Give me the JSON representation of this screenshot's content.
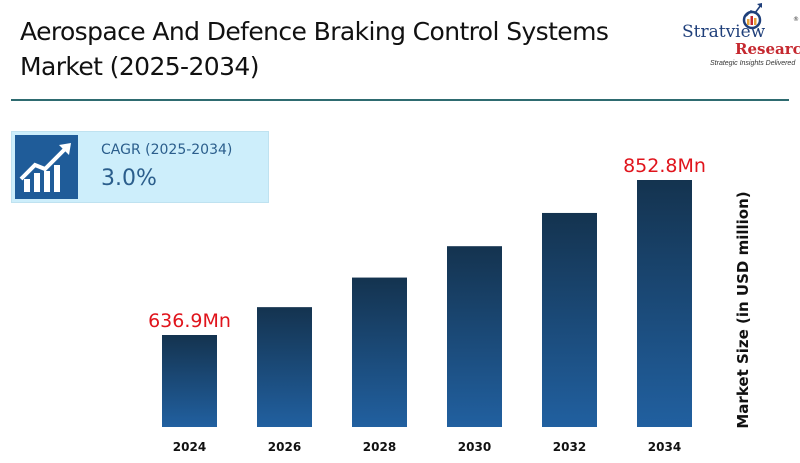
{
  "header": {
    "title_line1": "Aerospace And Defence Braking Control Systems",
    "title_line2": "Market (2025-2034)"
  },
  "logo": {
    "brand": "Stratview",
    "registered": "®",
    "research": "Research",
    "tagline": "Strategic Insights Delivered"
  },
  "cagr": {
    "icon": "growth-chart-icon",
    "label": "CAGR (2025-2034)",
    "value": "3.0%"
  },
  "colors": {
    "bar_top": "#14334f",
    "bar_bottom": "#2160a0",
    "data_label": "#e0141c",
    "rule": "#2e6b70",
    "cagr_bg": "#cdeefb",
    "cagr_icon_bg": "#1f5c99"
  },
  "chart_data": {
    "type": "bar",
    "title": "Aerospace And Defence Braking Control Systems Market (2025-2034)",
    "xlabel": "",
    "ylabel": "Market Size (in USD million)",
    "categories": [
      "2024",
      "2026",
      "2028",
      "2030",
      "2032",
      "2034"
    ],
    "values": [
      636.9,
      675.7,
      716.9,
      760.6,
      806.9,
      852.8
    ],
    "units": "USD million",
    "data_labels": [
      {
        "category": "2024",
        "text": "636.9Mn"
      },
      {
        "category": "2034",
        "text": "852.8Mn"
      }
    ],
    "cagr": "3.0%",
    "grid": false,
    "legend": "none",
    "y_axis_visible": false
  }
}
